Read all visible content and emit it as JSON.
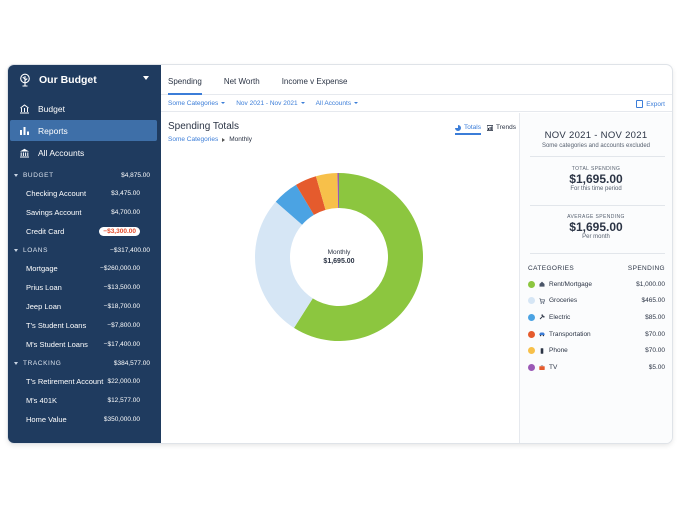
{
  "sidebar": {
    "title": "Our Budget",
    "nav": [
      {
        "label": "Budget",
        "icon": "budget-icon"
      },
      {
        "label": "Reports",
        "icon": "reports-icon",
        "active": true
      },
      {
        "label": "All Accounts",
        "icon": "bank-icon"
      }
    ],
    "groups": [
      {
        "name": "BUDGET",
        "total": "$4,875.00",
        "accounts": [
          {
            "name": "Checking Account",
            "value": "$3,475.00"
          },
          {
            "name": "Savings Account",
            "value": "$4,700.00"
          },
          {
            "name": "Credit Card",
            "value": "−$3,300.00",
            "badge": true
          }
        ]
      },
      {
        "name": "LOANS",
        "total": "−$317,400.00",
        "accounts": [
          {
            "name": "Mortgage",
            "value": "−$260,000.00"
          },
          {
            "name": "Prius Loan",
            "value": "−$13,500.00"
          },
          {
            "name": "Jeep Loan",
            "value": "−$18,700.00"
          },
          {
            "name": "T's Student Loans",
            "value": "−$7,800.00"
          },
          {
            "name": "M's Student Loans",
            "value": "−$17,400.00"
          }
        ]
      },
      {
        "name": "TRACKING",
        "total": "$384,577.00",
        "accounts": [
          {
            "name": "T's Retirement Account",
            "value": "$22,000.00"
          },
          {
            "name": "M's 401K",
            "value": "$12,577.00"
          },
          {
            "name": "Home Value",
            "value": "$350,000.00"
          }
        ]
      }
    ]
  },
  "tabs": [
    {
      "label": "Spending",
      "active": true
    },
    {
      "label": "Net Worth"
    },
    {
      "label": "Income v Expense"
    }
  ],
  "filters": {
    "categories": "Some Categories",
    "range": "Nov 2021 - Nov 2021",
    "accounts": "All Accounts",
    "export": "Export"
  },
  "report": {
    "title": "Spending Totals",
    "crumb_root": "Some Categories",
    "crumb_current": "Monthly",
    "toggle_totals": "Totals",
    "toggle_trends": "Trends",
    "center_label": "Monthly",
    "center_value": "$1,695.00"
  },
  "panel": {
    "range": "NOV 2021 - NOV 2021",
    "note": "Some categories and accounts excluded",
    "total_label": "TOTAL SPENDING",
    "total_value": "$1,695.00",
    "total_sub": "For this time period",
    "avg_label": "AVERAGE SPENDING",
    "avg_value": "$1,695.00",
    "avg_sub": "Per month",
    "col_categories": "CATEGORIES",
    "col_spending": "SPENDING"
  },
  "chart_data": {
    "type": "pie",
    "categories": [
      "Rent/Mortgage",
      "Groceries",
      "Electric",
      "Transportation",
      "Phone",
      "TV"
    ],
    "values": [
      1000,
      465,
      85,
      70,
      70,
      5
    ],
    "colors": [
      "#8cc63f",
      "#d6e6f5",
      "#4ba3e3",
      "#e55b2d",
      "#f7c04a",
      "#9b59b6"
    ],
    "value_labels": [
      "$1,000.00",
      "$465.00",
      "$85.00",
      "$70.00",
      "$70.00",
      "$5.00"
    ],
    "category_icons": [
      "house-icon",
      "cart-icon",
      "plug-icon",
      "car-icon",
      "phone-icon",
      "tv-icon"
    ]
  }
}
